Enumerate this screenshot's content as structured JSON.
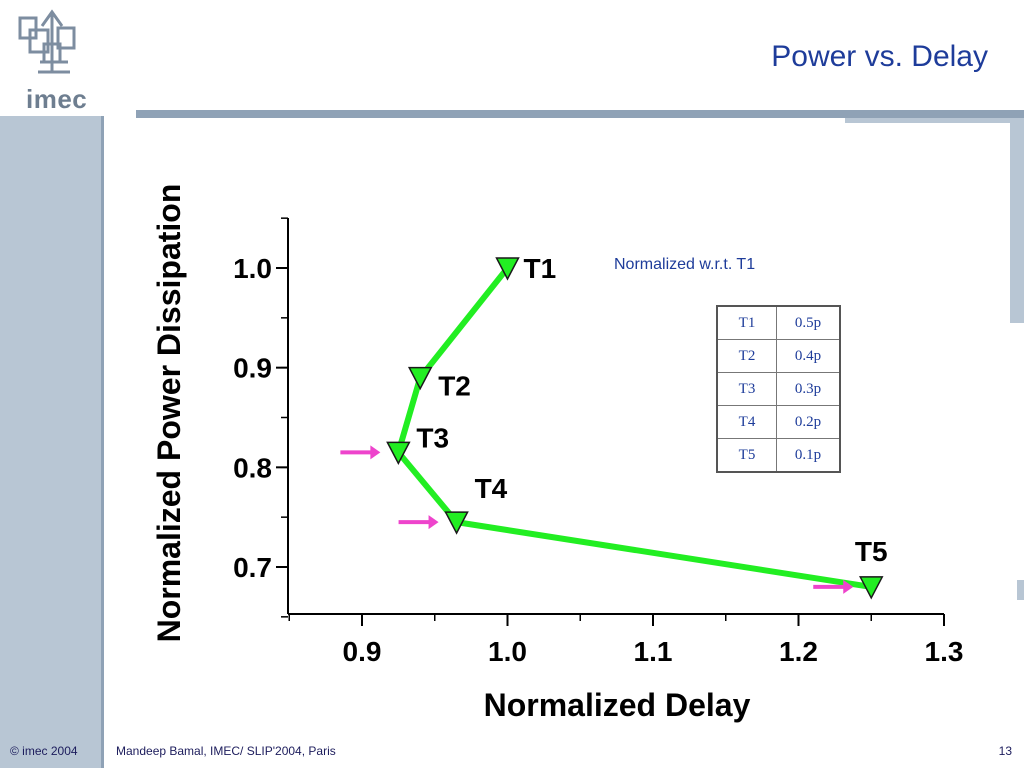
{
  "slide": {
    "title": "Power vs. Delay",
    "logo_text": "imec",
    "footer_left": "© imec 2004",
    "footer_center": "Mandeep Bamal, IMEC/ SLIP'2004, Paris",
    "page_number": "13",
    "note": "Normalized w.r.t. T1"
  },
  "table": {
    "rows": [
      {
        "name": "T1",
        "value": "0.5p"
      },
      {
        "name": "T2",
        "value": "0.4p"
      },
      {
        "name": "T3",
        "value": "0.3p"
      },
      {
        "name": "T4",
        "value": "0.2p"
      },
      {
        "name": "T5",
        "value": "0.1p"
      }
    ]
  },
  "colors": {
    "series": "#22ee22",
    "arrow": "#ee44cc",
    "title": "#1e3c9a"
  },
  "chart_data": {
    "type": "line",
    "xlabel": "Normalized Delay",
    "ylabel": "Normalized Power Dissipation",
    "xlim": [
      0.85,
      1.3
    ],
    "ylim": [
      0.65,
      1.05
    ],
    "xticks": [
      0.9,
      1.0,
      1.1,
      1.2,
      1.3
    ],
    "xtick_labels": [
      "0.9",
      "1.0",
      "1.1",
      "1.2",
      "1.3"
    ],
    "yticks": [
      0.7,
      0.8,
      0.9,
      1.0
    ],
    "ytick_labels": [
      "0.7",
      "0.8",
      "0.9",
      "1.0"
    ],
    "series": [
      {
        "points": [
          {
            "label": "T1",
            "x": 1.0,
            "y": 1.0
          },
          {
            "label": "T2",
            "x": 0.94,
            "y": 0.89
          },
          {
            "label": "T3",
            "x": 0.925,
            "y": 0.815
          },
          {
            "label": "T4",
            "x": 0.965,
            "y": 0.745
          },
          {
            "label": "T5",
            "x": 1.25,
            "y": 0.68
          }
        ]
      }
    ],
    "highlighted": [
      "T3",
      "T4",
      "T5"
    ],
    "grid": false
  }
}
